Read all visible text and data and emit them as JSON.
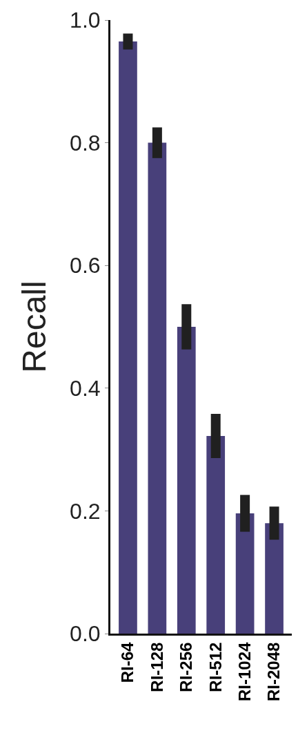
{
  "chart_data": {
    "type": "bar",
    "ylabel": "Recall",
    "categories": [
      "RI-64",
      "RI-128",
      "RI-256",
      "RI-512",
      "RI-1024",
      "RI-2048"
    ],
    "values": [
      0.965,
      0.8,
      0.5,
      0.322,
      0.196,
      0.18
    ],
    "errors": [
      0.013,
      0.025,
      0.037,
      0.036,
      0.03,
      0.027
    ],
    "color": "#48407a",
    "ylim": [
      0,
      1
    ],
    "yticks": [
      {
        "value": 0,
        "label": "0.0"
      },
      0.2,
      0.4,
      0.6,
      0.8,
      {
        "value": 1,
        "label": "1.0"
      }
    ],
    "legend": false
  }
}
